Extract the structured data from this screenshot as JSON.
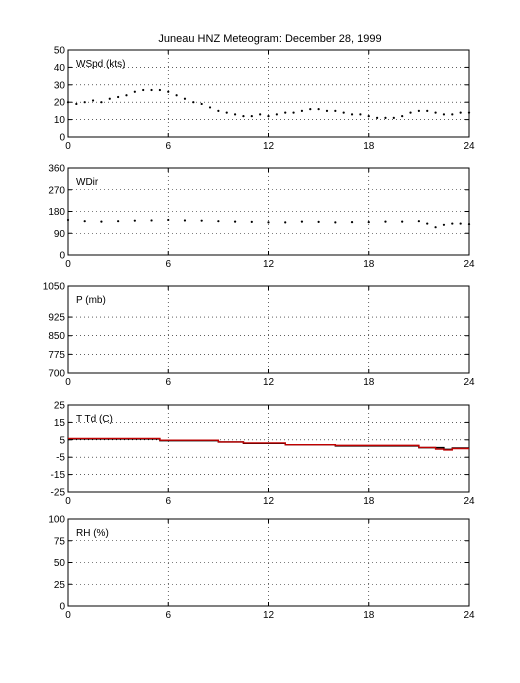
{
  "title": "Juneau HNZ Meteogram:   December 28, 1999",
  "chart_data": [
    {
      "type": "scatter",
      "label": "WSpd (kts)",
      "xlim": [
        0,
        24
      ],
      "ylim": [
        0,
        50
      ],
      "xticks": [
        0,
        6,
        12,
        18,
        24
      ],
      "yticks": [
        0,
        10,
        20,
        30,
        40,
        50
      ],
      "grid": true,
      "series": [
        {
          "color": "#000000",
          "x": [
            0,
            0.5,
            1,
            1.5,
            2,
            2.5,
            3,
            3.5,
            4,
            4.5,
            5,
            5.5,
            6,
            6.5,
            7,
            7.5,
            8,
            8.5,
            9,
            9.5,
            10,
            10.5,
            11,
            11.5,
            12,
            12.5,
            13,
            13.5,
            14,
            14.5,
            15,
            15.5,
            16,
            16.5,
            17,
            17.5,
            18,
            18.5,
            19,
            19.5,
            20,
            20.5,
            21,
            21.5,
            22,
            22.5,
            23,
            23.5,
            24
          ],
          "y": [
            20,
            19,
            20,
            21,
            20,
            22,
            23,
            24,
            26,
            27,
            27,
            27,
            26,
            24,
            22,
            20,
            19,
            17,
            15,
            14,
            13,
            12,
            12,
            13,
            12,
            13,
            14,
            14,
            15,
            16,
            16,
            15,
            15,
            14,
            13,
            13,
            12,
            11,
            11,
            11,
            12,
            14,
            15,
            15,
            14,
            13,
            13,
            14,
            14
          ]
        }
      ]
    },
    {
      "type": "scatter",
      "label": "WDir",
      "xlim": [
        0,
        24
      ],
      "ylim": [
        0,
        360
      ],
      "xticks": [
        0,
        6,
        12,
        18,
        24
      ],
      "yticks": [
        0,
        90,
        180,
        270,
        360
      ],
      "grid": true,
      "series": [
        {
          "color": "#000000",
          "x": [
            0,
            1,
            2,
            3,
            4,
            5,
            6,
            7,
            8,
            9,
            10,
            11,
            12,
            13,
            14,
            15,
            16,
            17,
            18,
            19,
            20,
            21,
            21.5,
            22,
            22.5,
            23,
            23.5,
            24
          ],
          "y": [
            145,
            140,
            138,
            140,
            142,
            143,
            145,
            143,
            142,
            140,
            138,
            137,
            135,
            135,
            138,
            137,
            135,
            136,
            136,
            138,
            138,
            140,
            130,
            115,
            125,
            130,
            130,
            128
          ]
        }
      ]
    },
    {
      "type": "line",
      "label": "P (mb)",
      "xlim": [
        0,
        24
      ],
      "ylim": [
        700,
        1050
      ],
      "xticks": [
        0,
        6,
        12,
        18,
        24
      ],
      "yticks": [
        700,
        775,
        850,
        925,
        1050
      ],
      "grid": true,
      "series": []
    },
    {
      "type": "line",
      "label": "T Td (C)",
      "xlim": [
        0,
        24
      ],
      "ylim": [
        -25,
        25
      ],
      "xticks": [
        0,
        6,
        12,
        18,
        24
      ],
      "yticks": [
        -25,
        -15,
        -5,
        5,
        15,
        25
      ],
      "grid": true,
      "series": [
        {
          "color": "#000000",
          "x": [
            0,
            5.5,
            5.5,
            9,
            9,
            10.5,
            10.5,
            13,
            13,
            16,
            16,
            21,
            21,
            22.5,
            22.5,
            23,
            23,
            24
          ],
          "y": [
            5.5,
            5.5,
            4.5,
            4.5,
            3.8,
            3.8,
            3.0,
            3.0,
            2.2,
            2.2,
            1.5,
            1.5,
            0.5,
            0.5,
            -0.5,
            -0.5,
            0.3,
            0.3
          ]
        },
        {
          "color": "#c00000",
          "x": [
            0,
            5.5,
            5.5,
            9,
            9,
            10.5,
            10.5,
            13,
            13,
            16,
            16,
            21,
            21,
            22,
            22,
            22.5,
            22.5,
            23,
            23,
            24
          ],
          "y": [
            5.8,
            5.8,
            4.8,
            4.8,
            3.8,
            3.8,
            3.2,
            3.2,
            2.2,
            2.2,
            1.8,
            1.8,
            0.6,
            0.6,
            -0.3,
            -0.3,
            -0.8,
            -0.8,
            0,
            0
          ]
        }
      ]
    },
    {
      "type": "line",
      "label": "RH (%)",
      "xlim": [
        0,
        24
      ],
      "ylim": [
        0,
        100
      ],
      "xticks": [
        0,
        6,
        12,
        18,
        24
      ],
      "yticks": [
        0,
        25,
        50,
        75,
        100
      ],
      "grid": true,
      "series": []
    }
  ]
}
